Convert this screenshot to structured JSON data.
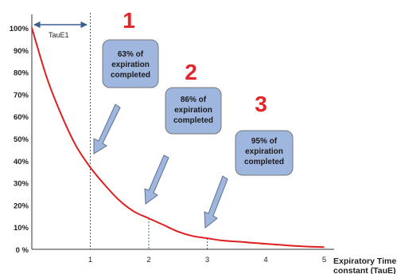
{
  "chart_data": {
    "type": "line",
    "xlabel_lines": [
      "Expiratory Time",
      "constant (TauE)"
    ],
    "ylabel": "",
    "xlim": [
      0,
      5.5
    ],
    "ylim": [
      0,
      100
    ],
    "x_ticks": [
      "1",
      "2",
      "3",
      "4",
      "5"
    ],
    "y_ticks": [
      "0 %",
      "10%",
      "20%",
      "30%",
      "40%",
      "50%",
      "60%",
      "70%",
      "80%",
      "90%",
      "100%"
    ],
    "grid": false,
    "series": [
      {
        "color": "#dd1f1f",
        "x": [
          0,
          0.25,
          0.5,
          0.75,
          1,
          1.25,
          1.5,
          1.75,
          2,
          2.25,
          2.5,
          2.75,
          3,
          3.25,
          3.5,
          3.75,
          4,
          4.25,
          4.5,
          4.75,
          5
        ],
        "y": [
          100,
          78,
          61,
          47,
          37,
          29,
          22,
          17,
          14,
          11,
          8,
          6,
          5,
          4,
          3.5,
          3,
          2.5,
          2,
          1.5,
          1.2,
          1
        ]
      }
    ],
    "markers": [
      {
        "x": 1,
        "y": 37
      },
      {
        "x": 2,
        "y": 14
      },
      {
        "x": 3,
        "y": 5
      }
    ],
    "tau_label": "TauE1",
    "callouts": [
      {
        "number": "1",
        "lines": [
          "63% of",
          "expiration",
          "completed"
        ]
      },
      {
        "number": "2",
        "lines": [
          "86% of",
          "expiration",
          "completed"
        ]
      },
      {
        "number": "3",
        "lines": [
          "95% of",
          "expiration",
          "completed"
        ]
      }
    ],
    "colors": {
      "curve": "#dd1f1f",
      "callout_number": "#e3262a",
      "box_fill": "#9fb6de",
      "box_stroke": "#777777",
      "arrow_fill": "#9fb6de",
      "arrow_stroke": "#5d6f8e",
      "marker_line": "#3a5f8f",
      "axis": "#333333"
    }
  }
}
